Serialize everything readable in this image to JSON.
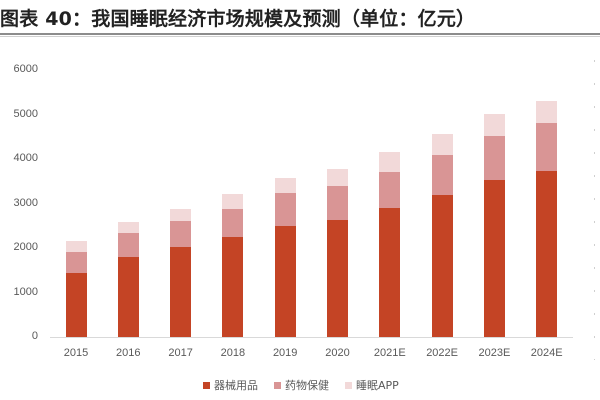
{
  "title": "图表 40：我国睡眠经济市场规模及预测（单位：亿元）",
  "colors": {
    "series1": "#C44425",
    "series2": "#D99595",
    "series3": "#F2D9D9"
  },
  "chart_data": {
    "type": "bar",
    "stacked": true,
    "title": "图表 40：我国睡眠经济市场规模及预测（单位：亿元）",
    "xlabel": "",
    "ylabel": "",
    "ylim": [
      0,
      6000
    ],
    "yticks": [
      0,
      1000,
      2000,
      3000,
      4000,
      5000,
      6000
    ],
    "grid": false,
    "legend_position": "bottom",
    "categories": [
      "2015",
      "2016",
      "2017",
      "2018",
      "2019",
      "2020",
      "2021E",
      "2022E",
      "2023E",
      "2024E"
    ],
    "series": [
      {
        "name": "器械用品",
        "values": [
          1445,
          1805,
          2016,
          2254,
          2505,
          2629,
          2899,
          3184,
          3528,
          3730
        ]
      },
      {
        "name": "药物保健",
        "values": [
          465,
          525,
          584,
          629,
          731,
          757,
          816,
          913,
          989,
          1072
        ]
      },
      {
        "name": "睡眠APP",
        "values": [
          247,
          261,
          283,
          330,
          344,
          382,
          435,
          465,
          494,
          508
        ]
      }
    ],
    "totals": [
      2157,
      2591,
      2883,
      3213,
      3580,
      3768,
      4150,
      4562,
      5011,
      5310
    ]
  }
}
